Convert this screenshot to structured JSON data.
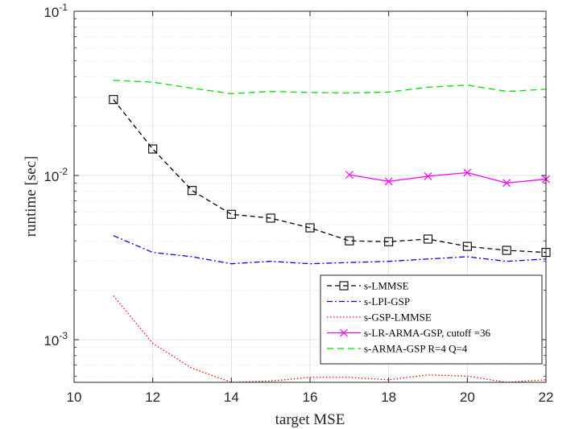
{
  "chart_data": {
    "type": "line",
    "xlabel": "target MSE",
    "ylabel": "runtime [sec]",
    "xlim": [
      10,
      22
    ],
    "ylim": [
      0.00055,
      0.1
    ],
    "yscale": "log",
    "grid": true,
    "minor_grid": true,
    "legend_position": "bottom-right",
    "x_ticks": [
      10,
      12,
      14,
      16,
      18,
      20,
      22
    ],
    "x_tick_labels": [
      "10",
      "12",
      "14",
      "16",
      "18",
      "20",
      "22"
    ],
    "y_ticks": [
      0.001,
      0.01,
      0.1
    ],
    "y_tick_labels": [
      {
        "base": "10",
        "exp": "-3"
      },
      {
        "base": "10",
        "exp": "-2"
      },
      {
        "base": "10",
        "exp": "-1"
      }
    ],
    "series": [
      {
        "name": "s-LMMSE",
        "color": "#000000",
        "dash": "6,4",
        "marker": "square",
        "x": [
          11,
          12,
          13,
          14,
          15,
          16,
          17,
          18,
          19,
          20,
          21,
          22
        ],
        "y": [
          0.029,
          0.0145,
          0.0081,
          0.0058,
          0.0055,
          0.0048,
          0.004,
          0.00395,
          0.0041,
          0.0037,
          0.0035,
          0.0034
        ]
      },
      {
        "name": "s-LPI-GSP",
        "color": "#0000ff",
        "dash": "7,3,2,3",
        "marker": "none",
        "x": [
          11,
          12,
          13,
          14,
          15,
          16,
          17,
          18,
          19,
          20,
          21,
          22
        ],
        "y": [
          0.0043,
          0.0034,
          0.0032,
          0.0029,
          0.003,
          0.0029,
          0.00295,
          0.003,
          0.0031,
          0.0032,
          0.003,
          0.0031
        ]
      },
      {
        "name": "s-GSP-LMMSE",
        "color": "#ff0000",
        "dash": "1.5,2.5",
        "marker": "none",
        "x": [
          11,
          12,
          13,
          14,
          15,
          16,
          17,
          18,
          19,
          20,
          21,
          22
        ],
        "y": [
          0.00185,
          0.00095,
          0.00067,
          0.00055,
          0.00056,
          0.00059,
          0.00059,
          0.00057,
          0.00061,
          0.0006,
          0.00055,
          0.00057
        ]
      },
      {
        "name": "s-LR-ARMA-GSP, cutoff =36",
        "color": "#ff00ff",
        "dash": "",
        "marker": "x",
        "x": [
          17,
          18,
          19,
          20,
          21,
          22
        ],
        "y": [
          0.0101,
          0.0092,
          0.0099,
          0.0104,
          0.009,
          0.0095
        ]
      },
      {
        "name": "s-ARMA-GSP R=4 Q=4",
        "color": "#00dd00",
        "dash": "8,5",
        "marker": "none",
        "x": [
          11,
          12,
          13,
          14,
          15,
          16,
          17,
          18,
          19,
          20,
          21,
          22
        ],
        "y": [
          0.038,
          0.037,
          0.034,
          0.0315,
          0.0325,
          0.032,
          0.0318,
          0.0322,
          0.0345,
          0.0355,
          0.0325,
          0.0335
        ]
      }
    ]
  }
}
